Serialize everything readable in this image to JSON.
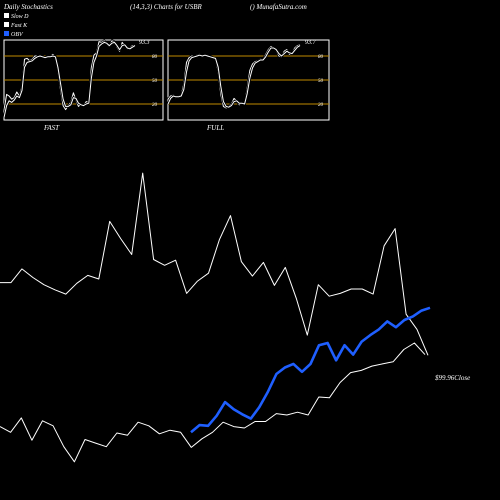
{
  "header": {
    "title": "Daily Stochastics",
    "params": "(14,3,3) Charts for USBR",
    "site": "() MunafaSutra.com"
  },
  "legend": [
    {
      "label": "Slow D",
      "color": "#ffffff"
    },
    {
      "label": "Fast K",
      "color": "#ffffff"
    },
    {
      "label": "OBV",
      "color": "#1f5fff"
    }
  ],
  "colors": {
    "background": "#000000",
    "level_line": "#c08a00",
    "stoch_line": "#ffffff",
    "obv_line": "#1f5fff"
  },
  "chart_data": [
    {
      "type": "line",
      "panel": "fast",
      "caption": "FAST",
      "end_label": "93.3",
      "ylim": [
        0,
        100
      ],
      "levels": [
        20,
        50,
        80
      ],
      "level_labels": [
        "20",
        "50",
        "80"
      ],
      "series": [
        {
          "values": [
            12,
            32,
            30,
            26,
            28,
            35,
            30,
            42,
            76,
            77,
            74,
            76,
            80,
            80,
            80,
            79,
            78,
            80,
            79,
            82,
            79,
            62,
            38,
            18,
            13,
            18,
            22,
            34,
            25,
            17,
            20,
            18,
            23,
            22,
            65,
            81,
            84,
            98,
            97,
            99,
            95,
            92,
            99,
            98,
            91,
            86,
            97,
            93,
            89,
            90,
            93,
            93
          ]
        },
        {
          "values": [
            3,
            18,
            24,
            22,
            25,
            30,
            28,
            37,
            66,
            72,
            73,
            74,
            77,
            79,
            80,
            79,
            78,
            79,
            79,
            80,
            79,
            66,
            46,
            26,
            17,
            17,
            19,
            28,
            27,
            21,
            19,
            18,
            20,
            21,
            52,
            72,
            80,
            92,
            95,
            97,
            96,
            93,
            96,
            97,
            93,
            88,
            93,
            94,
            90,
            89,
            91,
            93
          ]
        }
      ]
    },
    {
      "type": "line",
      "panel": "full",
      "caption": "FULL",
      "end_label": "93.7",
      "ylim": [
        0,
        100
      ],
      "levels": [
        20,
        50,
        80
      ],
      "level_labels": [
        "20",
        "50",
        "80"
      ],
      "series": [
        {
          "values": [
            26,
            30,
            31,
            28,
            30,
            31,
            45,
            72,
            78,
            80,
            79,
            81,
            82,
            80,
            81,
            80,
            79,
            78,
            77,
            60,
            32,
            17,
            15,
            17,
            20,
            27,
            24,
            19,
            22,
            20,
            40,
            62,
            70,
            73,
            74,
            76,
            75,
            82,
            88,
            92,
            90,
            87,
            80,
            79,
            86,
            88,
            82,
            83,
            90,
            93,
            94
          ]
        },
        {
          "values": [
            20,
            27,
            30,
            29,
            29,
            30,
            38,
            60,
            74,
            78,
            79,
            80,
            81,
            80,
            81,
            80,
            79,
            78,
            77,
            66,
            42,
            23,
            17,
            16,
            18,
            23,
            24,
            21,
            21,
            20,
            33,
            52,
            65,
            71,
            73,
            75,
            75,
            79,
            85,
            90,
            90,
            88,
            83,
            80,
            83,
            86,
            84,
            83,
            87,
            91,
            93
          ]
        }
      ]
    },
    {
      "type": "line",
      "panel": "price",
      "price_label": "$99.96",
      "close_label": "Close",
      "series": [
        {
          "values": [
            7.7,
            7.7,
            9.6,
            8.4,
            7.4,
            6.7,
            6.1,
            7.6,
            8.7,
            8.2,
            16.2,
            13.8,
            11.6,
            22.9,
            10.9,
            10.1,
            10.8,
            6.2,
            7.9,
            9.0,
            13.7,
            17.0,
            10.6,
            8.6,
            10.5,
            7.3,
            9.8,
            5.5,
            0.4,
            7.4,
            5.8,
            6.2,
            6.8,
            6.8,
            6.1,
            12.8,
            15.2,
            3.3,
            1.2,
            -2.4
          ]
        },
        {
          "values": [
            -12.3,
            -13.1,
            -11.1,
            -14.2,
            -11.5,
            -12.2,
            -15.1,
            -17.2,
            -14.1,
            -14.6,
            -15.1,
            -13.2,
            -13.5,
            -11.7,
            -12.2,
            -13.3,
            -12.8,
            -13.1,
            -15.2,
            -14.0,
            -13.1,
            -11.7,
            -12.3,
            -12.5,
            -11.6,
            -11.6,
            -10.5,
            -10.7,
            -10.3,
            -10.7,
            -8.2,
            -8.3,
            -6.2,
            -4.8,
            -4.5,
            -3.9,
            -3.6,
            -3.3,
            -1.6,
            -0.7,
            -2.3
          ]
        },
        {
          "values": [
            -13.1,
            -12.1,
            -12.2,
            -10.8,
            -8.9,
            -9.9,
            -10.6,
            -11.2,
            -9.6,
            -7.5,
            -5.0,
            -4.1,
            -3.6,
            -4.7,
            -3.6,
            -1.0,
            -0.7,
            -3.1,
            -1.0,
            -2.3,
            -0.5,
            0.4,
            1.2,
            2.3,
            1.5,
            2.5,
            3.0,
            3.8,
            4.2
          ]
        }
      ]
    }
  ]
}
